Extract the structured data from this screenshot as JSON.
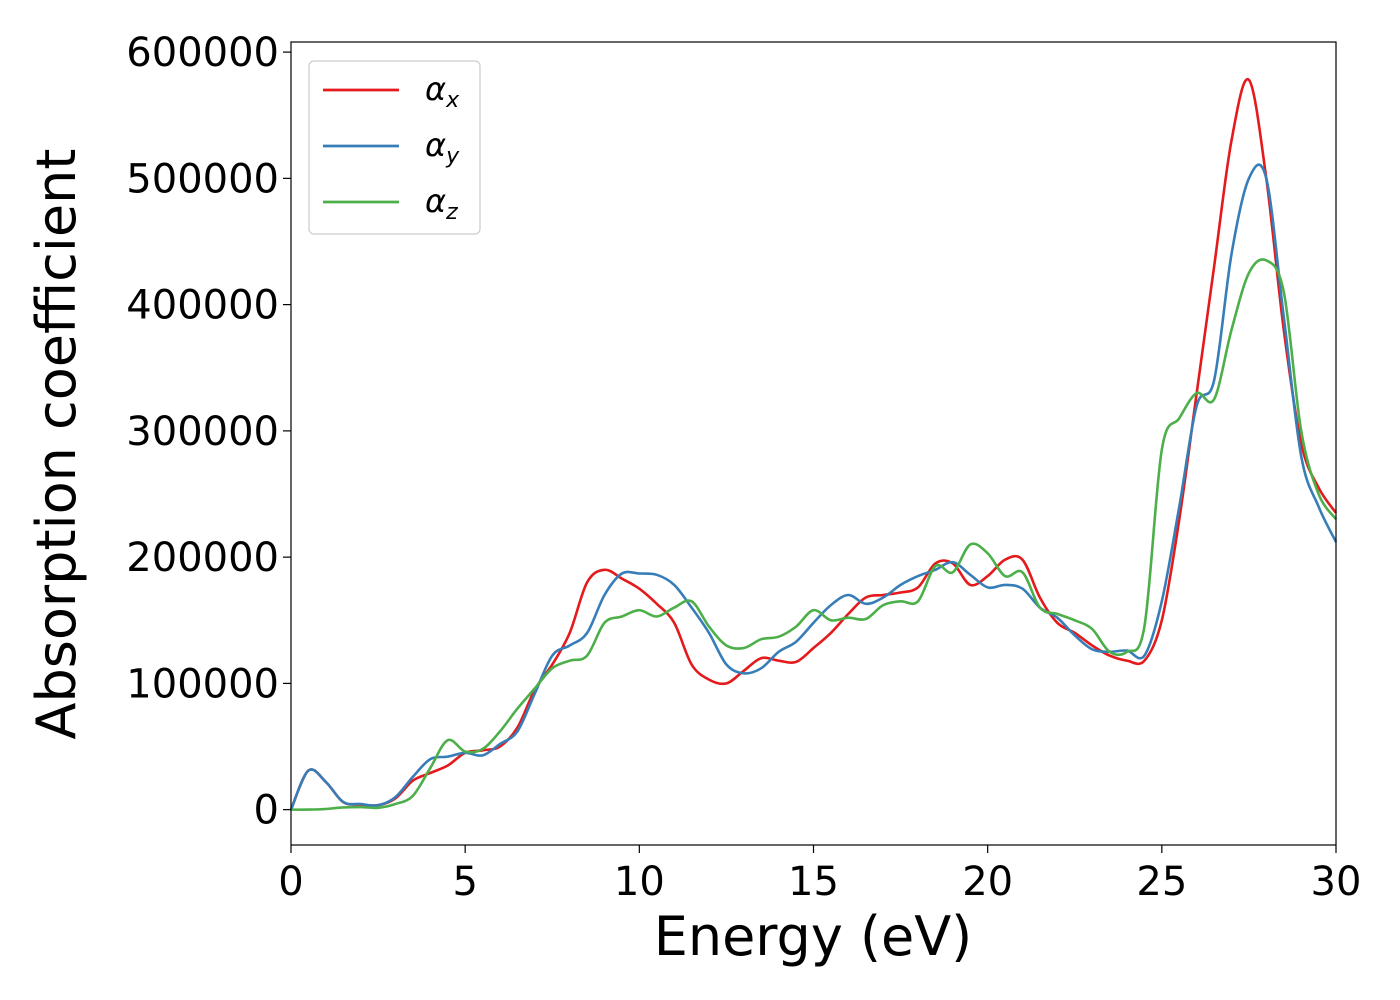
{
  "chart_data": {
    "type": "line",
    "xlabel": "Energy (eV)",
    "ylabel": "Absorption coefficient",
    "xlim": [
      0,
      30
    ],
    "ylim": [
      -28000,
      608000
    ],
    "xticks": [
      0,
      5,
      10,
      15,
      20,
      25,
      30
    ],
    "yticks": [
      0,
      100000,
      200000,
      300000,
      400000,
      500000,
      600000
    ],
    "grid": false,
    "legend_position": "top-left",
    "x": [
      0,
      0.5,
      1,
      1.5,
      2,
      2.5,
      3,
      3.5,
      4,
      4.5,
      5,
      5.5,
      6,
      6.5,
      7,
      7.5,
      8,
      8.5,
      9,
      9.5,
      10,
      10.5,
      11,
      11.5,
      12,
      12.5,
      13,
      13.5,
      14,
      14.5,
      15,
      15.5,
      16,
      16.5,
      17,
      17.5,
      18,
      18.5,
      19,
      19.5,
      20,
      20.5,
      21,
      21.5,
      22,
      22.5,
      23,
      23.5,
      24,
      24.5,
      25,
      25.5,
      26,
      26.5,
      27,
      27.5,
      28,
      28.5,
      29,
      29.5,
      30
    ],
    "series": [
      {
        "name": "α",
        "subscript": "x",
        "color": "#e41a1c",
        "values": [
          0,
          31000,
          22000,
          6000,
          4000,
          3500,
          9000,
          23000,
          29000,
          35000,
          45000,
          47000,
          50000,
          65000,
          95000,
          115000,
          140000,
          180000,
          190000,
          183000,
          175000,
          163000,
          148000,
          115000,
          103000,
          100000,
          110000,
          120000,
          118000,
          117000,
          128000,
          140000,
          155000,
          168000,
          170000,
          172000,
          176000,
          195000,
          195000,
          178000,
          185000,
          198000,
          198000,
          168000,
          148000,
          140000,
          130000,
          122000,
          118000,
          118000,
          150000,
          230000,
          330000,
          430000,
          530000,
          578000,
          500000,
          380000,
          290000,
          255000,
          235000
        ]
      },
      {
        "name": "α",
        "subscript": "y",
        "color": "#377eb8",
        "values": [
          0,
          31000,
          22000,
          6000,
          4500,
          3500,
          10000,
          26000,
          40000,
          42000,
          45000,
          43000,
          52000,
          62000,
          92000,
          122000,
          130000,
          140000,
          170000,
          187000,
          187000,
          186000,
          178000,
          160000,
          140000,
          115000,
          108000,
          112000,
          125000,
          133000,
          148000,
          162000,
          170000,
          163000,
          168000,
          178000,
          185000,
          190000,
          196000,
          186000,
          176000,
          178000,
          175000,
          160000,
          152000,
          138000,
          127000,
          125000,
          126000,
          122000,
          165000,
          240000,
          320000,
          340000,
          440000,
          500000,
          500000,
          390000,
          280000,
          240000,
          212000
        ]
      },
      {
        "name": "α",
        "subscript": "z",
        "color": "#4daf4a",
        "values": [
          0,
          0,
          500,
          1800,
          2000,
          1500,
          4500,
          11000,
          33000,
          55000,
          46000,
          48000,
          62000,
          80000,
          96000,
          112000,
          118000,
          122000,
          148000,
          153000,
          158000,
          153000,
          160000,
          165000,
          145000,
          130000,
          128000,
          135000,
          137000,
          145000,
          158000,
          150000,
          152000,
          151000,
          162000,
          165000,
          165000,
          193000,
          188000,
          210000,
          203000,
          185000,
          188000,
          160000,
          155000,
          150000,
          143000,
          125000,
          125000,
          145000,
          285000,
          310000,
          330000,
          325000,
          380000,
          425000,
          435000,
          410000,
          300000,
          250000,
          230000
        ]
      }
    ]
  }
}
